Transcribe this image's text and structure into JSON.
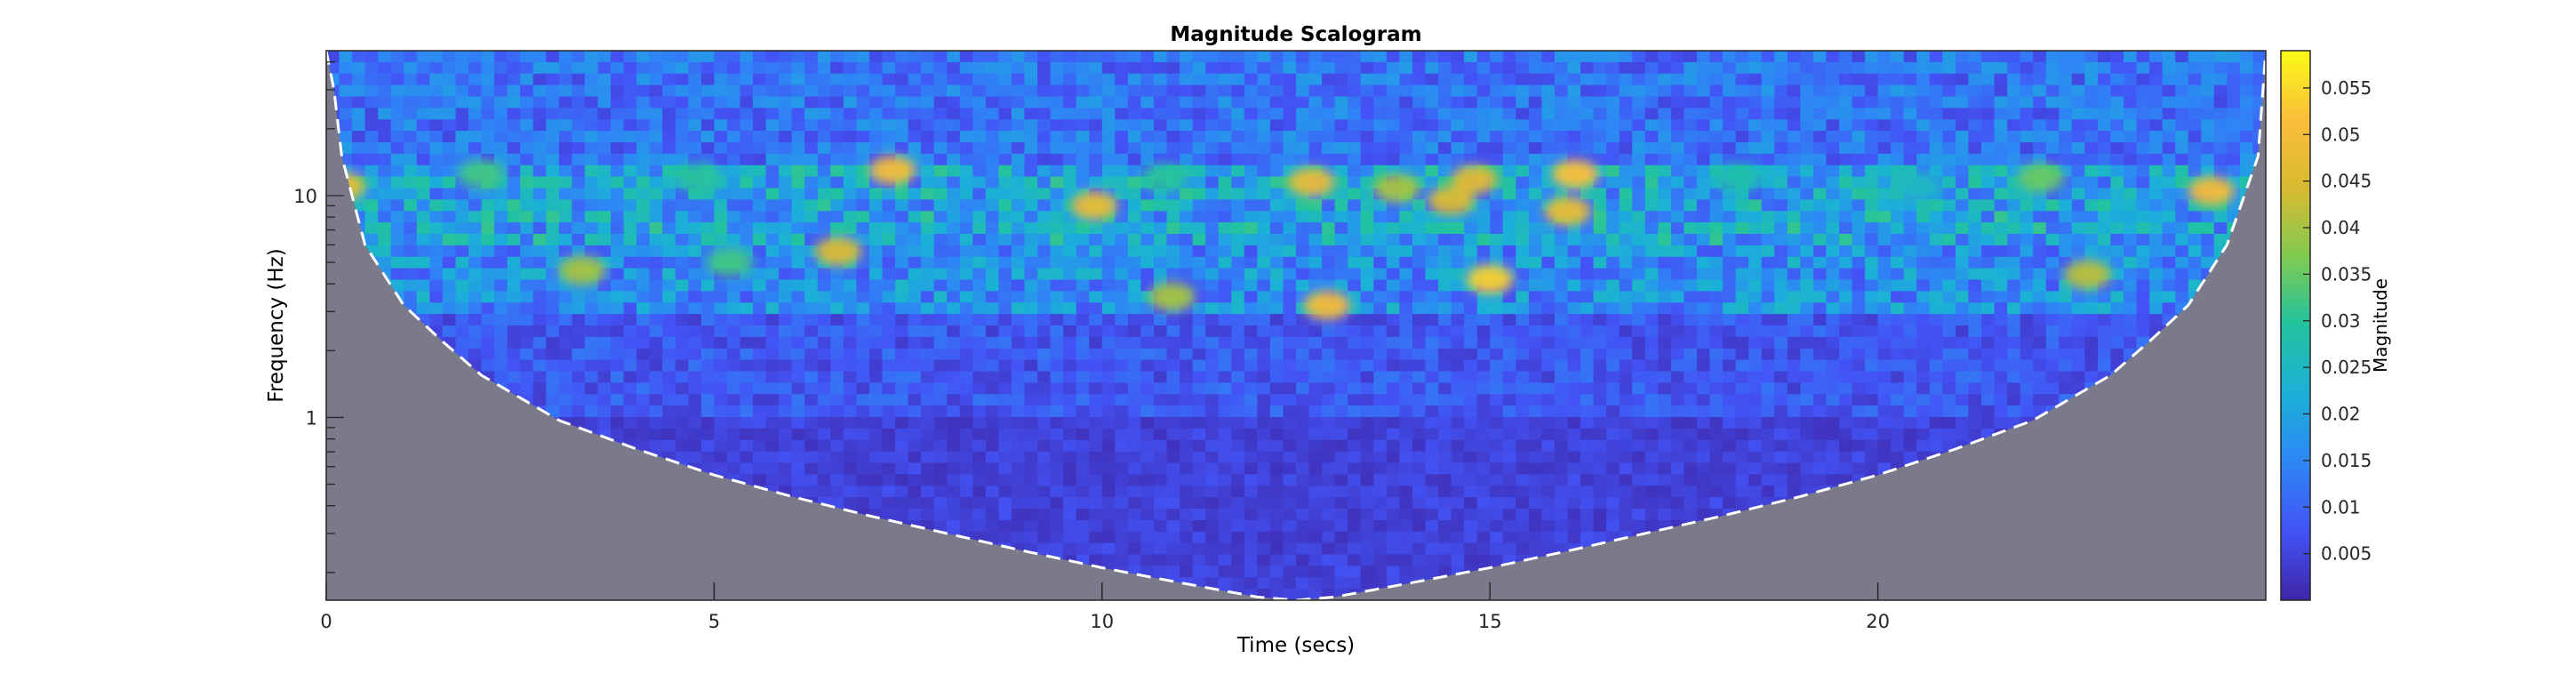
{
  "chart_data": {
    "type": "heatmap",
    "title": "Magnitude Scalogram",
    "xlabel": "Time (secs)",
    "ylabel": "Frequency (Hz)",
    "xlim": [
      0,
      25
    ],
    "ylim": [
      0.15,
      45
    ],
    "yscale": "log",
    "x_ticks": [
      {
        "value": 0,
        "label": "0"
      },
      {
        "value": 5,
        "label": "5"
      },
      {
        "value": 10,
        "label": "10"
      },
      {
        "value": 15,
        "label": "15"
      },
      {
        "value": 20,
        "label": "20"
      }
    ],
    "y_ticks": [
      {
        "value": 1,
        "label": "1"
      },
      {
        "value": 10,
        "label": "10"
      }
    ],
    "colorbar": {
      "label": "Magnitude",
      "range": [
        0,
        0.059
      ],
      "ticks": [
        {
          "value": 0.005,
          "label": "0.005"
        },
        {
          "value": 0.01,
          "label": "0.01"
        },
        {
          "value": 0.015,
          "label": "0.015"
        },
        {
          "value": 0.02,
          "label": "0.02"
        },
        {
          "value": 0.025,
          "label": "0.025"
        },
        {
          "value": 0.03,
          "label": "0.03"
        },
        {
          "value": 0.035,
          "label": "0.035"
        },
        {
          "value": 0.04,
          "label": "0.04"
        },
        {
          "value": 0.045,
          "label": "0.045"
        },
        {
          "value": 0.05,
          "label": "0.05"
        },
        {
          "value": 0.055,
          "label": "0.055"
        }
      ],
      "colormap": [
        "#3e26a8",
        "#4353f5",
        "#2e86f5",
        "#1bb0d8",
        "#21c3a0",
        "#80ca50",
        "#d9ba30",
        "#fbbd3b",
        "#f9fb15"
      ]
    },
    "cone_of_influence": {
      "x": [
        0,
        0.1,
        0.2,
        0.5,
        1,
        1.5,
        2,
        3,
        4,
        5,
        6,
        7,
        8,
        9,
        10,
        11,
        12,
        12.5,
        13,
        14,
        15,
        16,
        17,
        18,
        19,
        20,
        21,
        22,
        23,
        23.5,
        24,
        24.5,
        24.9,
        25
      ],
      "y": [
        45,
        30,
        15,
        6,
        3.2,
        2.2,
        1.55,
        0.97,
        0.72,
        0.55,
        0.44,
        0.36,
        0.3,
        0.25,
        0.21,
        0.18,
        0.155,
        0.15,
        0.155,
        0.18,
        0.21,
        0.25,
        0.3,
        0.36,
        0.44,
        0.55,
        0.72,
        0.97,
        1.55,
        2.2,
        3.2,
        6,
        15,
        45
      ],
      "line_color": "#ffffff",
      "shade_color": "#7a7a8a"
    },
    "hotspots": [
      {
        "t": 0.2,
        "f": 11,
        "m": 0.048
      },
      {
        "t": 2,
        "f": 12.5,
        "m": 0.032
      },
      {
        "t": 3.3,
        "f": 4.6,
        "m": 0.04
      },
      {
        "t": 4.8,
        "f": 12,
        "m": 0.03
      },
      {
        "t": 5.2,
        "f": 5,
        "m": 0.032
      },
      {
        "t": 6.6,
        "f": 5.6,
        "m": 0.045
      },
      {
        "t": 7.3,
        "f": 13,
        "m": 0.05
      },
      {
        "t": 9.9,
        "f": 9,
        "m": 0.048
      },
      {
        "t": 10.8,
        "f": 12,
        "m": 0.03
      },
      {
        "t": 10.9,
        "f": 3.5,
        "m": 0.04
      },
      {
        "t": 12.7,
        "f": 11.5,
        "m": 0.048
      },
      {
        "t": 12.9,
        "f": 3.2,
        "m": 0.05
      },
      {
        "t": 13.8,
        "f": 10.8,
        "m": 0.04
      },
      {
        "t": 14.5,
        "f": 9.5,
        "m": 0.045
      },
      {
        "t": 14.8,
        "f": 11.8,
        "m": 0.046
      },
      {
        "t": 15,
        "f": 4.2,
        "m": 0.054
      },
      {
        "t": 16.1,
        "f": 12.5,
        "m": 0.052
      },
      {
        "t": 16,
        "f": 8.5,
        "m": 0.048
      },
      {
        "t": 18.2,
        "f": 12,
        "m": 0.028
      },
      {
        "t": 20.5,
        "f": 11,
        "m": 0.025
      },
      {
        "t": 22.1,
        "f": 12,
        "m": 0.035
      },
      {
        "t": 22.7,
        "f": 4.4,
        "m": 0.042
      },
      {
        "t": 24.3,
        "f": 10.5,
        "m": 0.05
      }
    ]
  }
}
